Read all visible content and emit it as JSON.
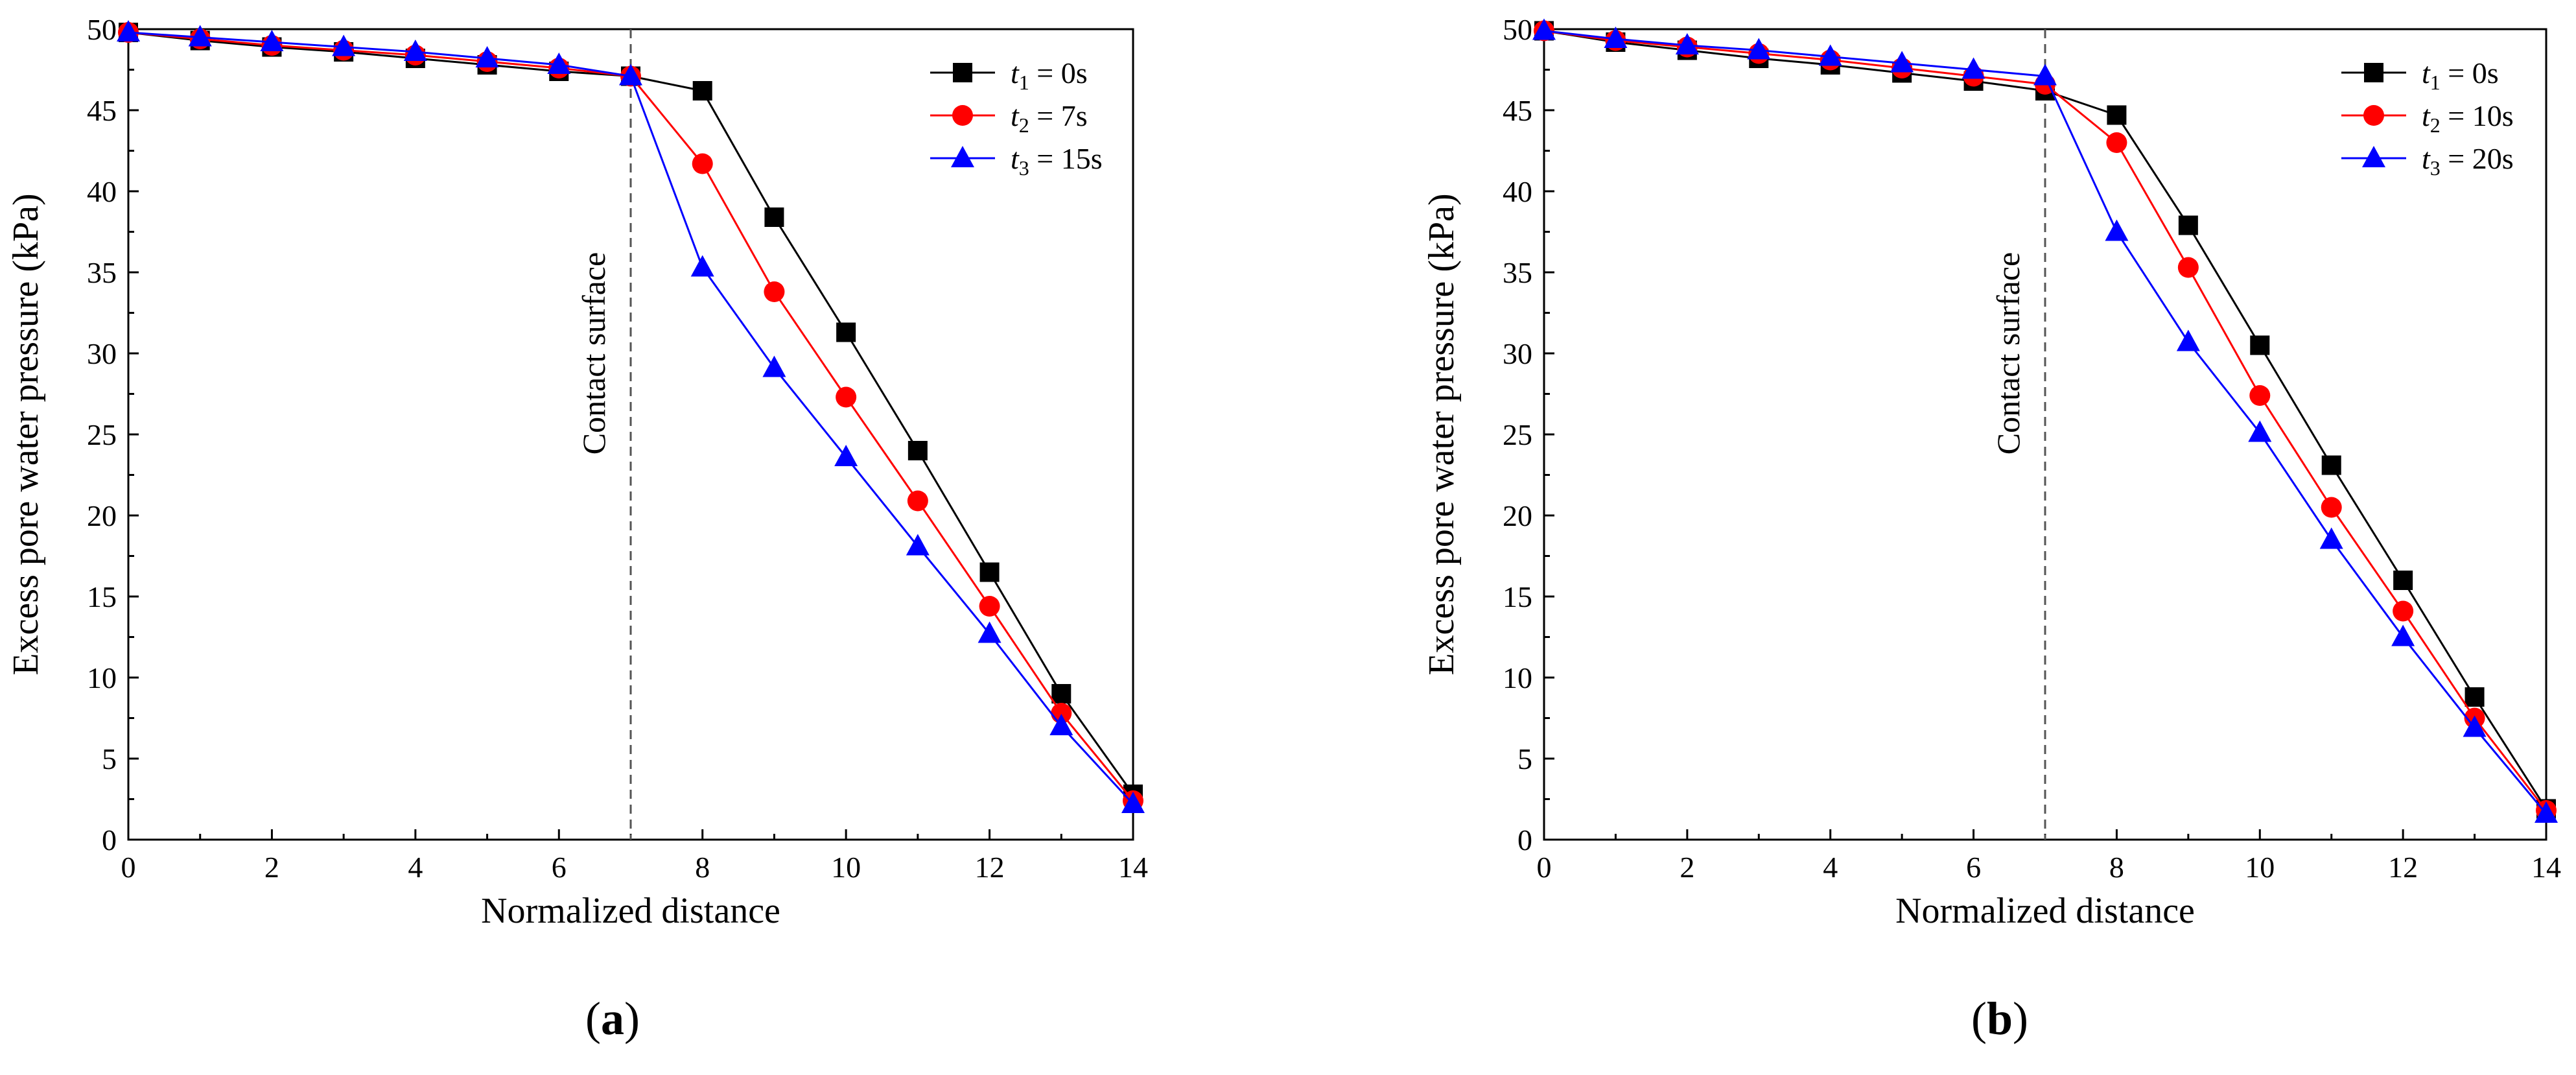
{
  "chart_data": [
    {
      "type": "line",
      "panel": "a",
      "xlabel": "Normalized distance",
      "ylabel": "Excess pore water pressure (kPa)",
      "xlim": [
        0,
        14
      ],
      "ylim": [
        0,
        50
      ],
      "xticks": [
        0,
        2,
        4,
        6,
        8,
        10,
        12,
        14
      ],
      "yticks": [
        0,
        5,
        10,
        15,
        20,
        25,
        30,
        35,
        40,
        45,
        50
      ],
      "annotation": {
        "text": "Contact surface",
        "x": 7
      },
      "legend_position": "top-right",
      "x": [
        0,
        1,
        2,
        3,
        4,
        5,
        6,
        7,
        8,
        9,
        10,
        11,
        12,
        13,
        14
      ],
      "series": [
        {
          "name": "t1 = 0s",
          "var": "t",
          "sub": "1",
          "rest": " = 0s",
          "color": "#000000",
          "marker": "square",
          "values": [
            49.8,
            49.3,
            48.9,
            48.6,
            48.2,
            47.8,
            47.4,
            47.1,
            46.2,
            38.4,
            31.3,
            24.0,
            16.5,
            9.0,
            2.8
          ]
        },
        {
          "name": "t2 = 7s",
          "var": "t",
          "sub": "2",
          "rest": " = 7s",
          "color": "#ff0000",
          "marker": "circle",
          "values": [
            49.8,
            49.4,
            49.0,
            48.7,
            48.4,
            48.0,
            47.6,
            47.1,
            41.7,
            33.8,
            27.3,
            20.9,
            14.4,
            7.8,
            2.4
          ]
        },
        {
          "name": "t3 = 15s",
          "var": "t",
          "sub": "3",
          "rest": " = 15s",
          "color": "#0000ff",
          "marker": "triangle",
          "values": [
            49.8,
            49.5,
            49.2,
            48.9,
            48.6,
            48.2,
            47.8,
            47.1,
            35.3,
            29.1,
            23.6,
            18.1,
            12.7,
            7.0,
            2.2
          ]
        }
      ]
    },
    {
      "type": "line",
      "panel": "b",
      "xlabel": "Normalized distance",
      "ylabel": "Excess pore water pressure (kPa)",
      "xlim": [
        0,
        14
      ],
      "ylim": [
        0,
        50
      ],
      "xticks": [
        0,
        2,
        4,
        6,
        8,
        10,
        12,
        14
      ],
      "yticks": [
        0,
        5,
        10,
        15,
        20,
        25,
        30,
        35,
        40,
        45,
        50
      ],
      "annotation": {
        "text": "Contact surface",
        "x": 7
      },
      "legend_position": "top-right",
      "x": [
        0,
        1,
        2,
        3,
        4,
        5,
        6,
        7,
        8,
        9,
        10,
        11,
        12,
        13,
        14
      ],
      "series": [
        {
          "name": "t1 = 0s",
          "var": "t",
          "sub": "1",
          "rest": " = 0s",
          "color": "#000000",
          "marker": "square",
          "values": [
            49.9,
            49.2,
            48.7,
            48.2,
            47.8,
            47.3,
            46.8,
            46.2,
            44.7,
            37.9,
            30.5,
            23.1,
            16.0,
            8.8,
            1.9
          ]
        },
        {
          "name": "t2 = 10s",
          "var": "t",
          "sub": "2",
          "rest": " = 10s",
          "color": "#ff0000",
          "marker": "circle",
          "values": [
            49.9,
            49.3,
            48.9,
            48.5,
            48.1,
            47.6,
            47.1,
            46.6,
            43.0,
            35.3,
            27.4,
            20.5,
            14.1,
            7.5,
            1.8
          ]
        },
        {
          "name": "t3 = 20s",
          "var": "t",
          "sub": "3",
          "rest": " = 20s",
          "color": "#0000ff",
          "marker": "triangle",
          "values": [
            49.9,
            49.4,
            49.0,
            48.7,
            48.3,
            47.9,
            47.5,
            47.1,
            37.5,
            30.7,
            25.1,
            18.5,
            12.5,
            6.9,
            1.6
          ]
        }
      ]
    }
  ],
  "panel_labels": [
    "a",
    "b"
  ]
}
